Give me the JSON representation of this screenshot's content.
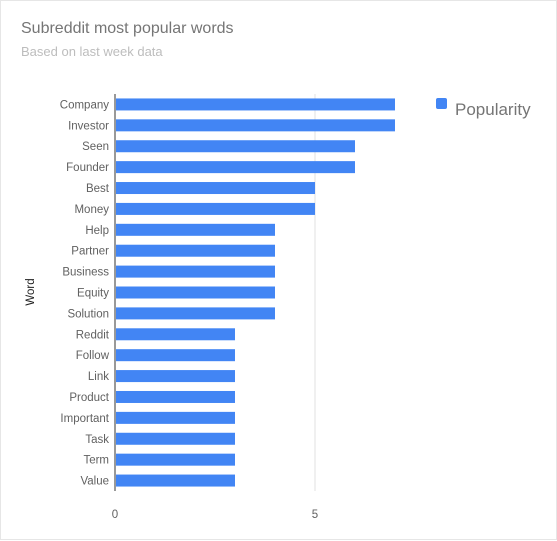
{
  "header": {
    "title": "Subreddit most popular words",
    "subtitle": "Based on last week data"
  },
  "chart_data": {
    "type": "bar",
    "orientation": "horizontal",
    "title": "Subreddit most popular words",
    "subtitle": "Based on last week data",
    "ylabel": "Word",
    "xlabel": "",
    "categories": [
      "Company",
      "Investor",
      "Seen",
      "Founder",
      "Best",
      "Money",
      "Help",
      "Partner",
      "Business",
      "Equity",
      "Solution",
      "Reddit",
      "Follow",
      "Link",
      "Product",
      "Important",
      "Task",
      "Term",
      "Value"
    ],
    "series": [
      {
        "name": "Popularity",
        "color": "#4285f4",
        "values": [
          7,
          7,
          6,
          6,
          5,
          5,
          4,
          4,
          4,
          4,
          4,
          3,
          3,
          3,
          3,
          3,
          3,
          3,
          3
        ]
      }
    ],
    "xlim": [
      0,
      10.5
    ],
    "xticks": [
      0,
      5
    ],
    "grid": true,
    "legend": "top-right"
  }
}
